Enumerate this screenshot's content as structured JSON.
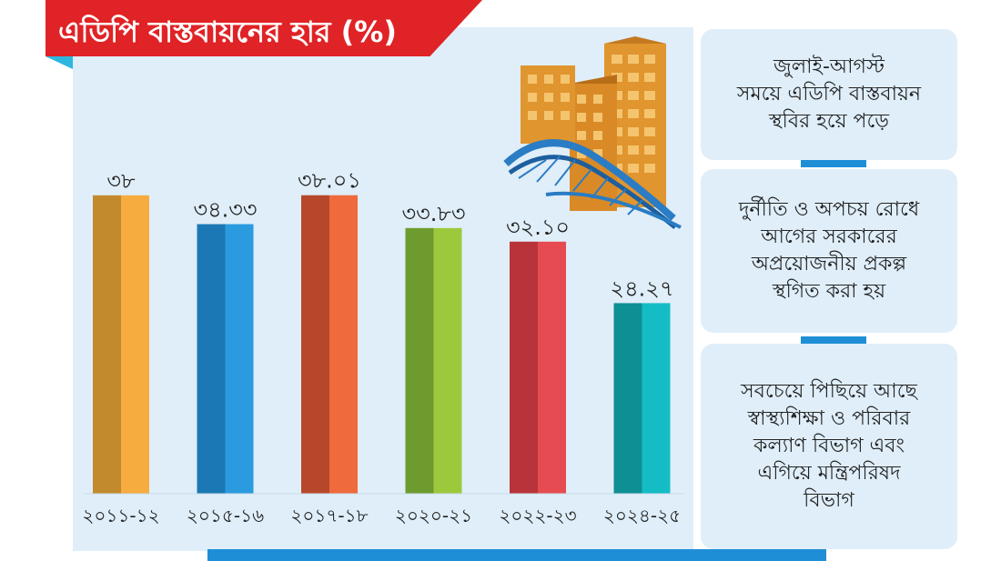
{
  "title": "এডিপি বাস্তবায়নের হার (%)",
  "chart_data": {
    "type": "bar",
    "title": "এডিপি বাস্তবায়নের হার (%)",
    "categories": [
      "২০১১-১২",
      "২০১৫-১৬",
      "২০১৭-১৮",
      "২০২০-২১",
      "২০২২-২৩",
      "২০২৪-২৫"
    ],
    "values": [
      38,
      34.33,
      38.01,
      33.83,
      32.1,
      24.27
    ],
    "value_labels": [
      "৩৮",
      "৩৪.৩৩",
      "৩৮.০১",
      "৩৩.৮৩",
      "৩২.১০",
      "২৪.২৭"
    ],
    "colors": [
      [
        "#c28a2c",
        "#f7ac3f"
      ],
      [
        "#1b78b4",
        "#2b9be0"
      ],
      [
        "#b7472a",
        "#ef6a3d"
      ],
      [
        "#6d9b2e",
        "#9cc93c"
      ],
      [
        "#b8343a",
        "#e54b50"
      ],
      [
        "#0e8f94",
        "#14bdc5"
      ]
    ],
    "ylim": [
      0,
      44
    ],
    "grid": false,
    "legend": "none"
  },
  "notes": [
    "জুলাই-আগস্ট\nসময়ে এডিপি বাস্তবায়ন\nস্থবির হয়ে পড়ে",
    "দুর্নীতি ও অপচয় রোধে\nআগের সরকারের\nঅপ্রয়োজনীয় প্রকল্প\nস্থগিত করা হয়",
    "সবচেয়ে পিছিয়ে আছে\nস্বাস্থ্যশিক্ষা ও পরিবার\nকল্যাণ বিভাগ এবং\nএগিয়ে মন্ত্রিপরিষদ\nবিভাগ"
  ],
  "colors": {
    "banner": "#e02326",
    "accent": "#1e8fd6",
    "panel": "#dfeef9",
    "building": "#e0952e",
    "bridge": "#2a7cc4"
  },
  "illustration": "buildings-and-bridge"
}
